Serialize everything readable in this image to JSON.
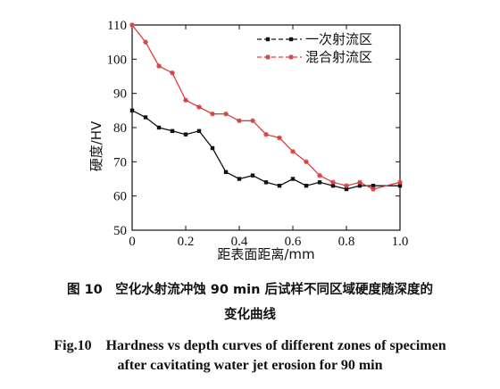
{
  "chart_data": {
    "type": "line",
    "xlabel": "距表面距离/mm",
    "ylabel": "硬度/HV",
    "xlim": [
      0,
      1.0
    ],
    "ylim": [
      50,
      110
    ],
    "xticks": [
      "0",
      "0.2",
      "0.4",
      "0.6",
      "0.8",
      "1.0"
    ],
    "yticks": [
      "50",
      "60",
      "70",
      "80",
      "90",
      "100",
      "110"
    ],
    "grid": false,
    "legend_position": "top-right",
    "series": [
      {
        "name": "一次射流区",
        "color": "#111111",
        "marker": "square",
        "x": [
          0,
          0.05,
          0.1,
          0.15,
          0.2,
          0.25,
          0.3,
          0.35,
          0.4,
          0.45,
          0.5,
          0.55,
          0.6,
          0.65,
          0.7,
          0.75,
          0.8,
          0.85,
          0.9,
          1.0
        ],
        "y": [
          85,
          83,
          80,
          79,
          78,
          79,
          74,
          67,
          65,
          66,
          64,
          63,
          65,
          63,
          64,
          63,
          62,
          63,
          63,
          63
        ]
      },
      {
        "name": "混合射流区",
        "color": "#d94040",
        "marker": "star",
        "x": [
          0,
          0.05,
          0.1,
          0.15,
          0.2,
          0.25,
          0.3,
          0.35,
          0.4,
          0.45,
          0.5,
          0.55,
          0.6,
          0.65,
          0.7,
          0.75,
          0.8,
          0.85,
          0.9,
          1.0
        ],
        "y": [
          110,
          105,
          98,
          96,
          88,
          86,
          84,
          84,
          82,
          82,
          78,
          77,
          73,
          70,
          66,
          64,
          63,
          64,
          62,
          64
        ]
      }
    ]
  },
  "caption": {
    "cn_line1": "图 10　空化水射流冲蚀 90 min 后试样不同区域硬度随深度的",
    "cn_line2": "变化曲线",
    "en_line1": "Fig.10　Hardness vs depth curves of different zones of specimen",
    "en_line2": "after cavitating water jet erosion for 90 min"
  }
}
